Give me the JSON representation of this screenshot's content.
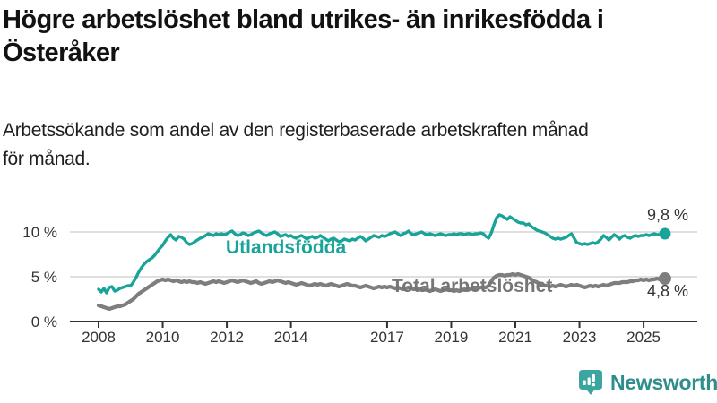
{
  "header": {
    "title_line1": "Högre arbetslöshet bland utrikes- än inrikesfödda i",
    "title_line2": "Österåker",
    "subtitle_line1": "Arbetssökande som andel av den registerbaserade arbetskraften månad",
    "subtitle_line2": "för månad."
  },
  "chart_data": {
    "type": "line",
    "title": "Högre arbetslöshet bland utrikes- än inrikesfödda i Österåker",
    "x_unit": "month",
    "x_start": "2008-01",
    "x_end": "2025-09",
    "x_tick_labels": [
      "2008",
      "2010",
      "2012",
      "2014",
      "2017",
      "2019",
      "2021",
      "2023",
      "2025"
    ],
    "y_ticks": [
      {
        "value": 0,
        "label": "0 %"
      },
      {
        "value": 5,
        "label": "5 %"
      },
      {
        "value": 10,
        "label": "10 %"
      }
    ],
    "ylim": [
      0,
      13
    ],
    "grid": "horizontal",
    "legend_position": "inline-labels",
    "colors": {
      "axis": "#333333",
      "grid": "#cccccc",
      "tick_label": "#333333",
      "value_label": "#333333"
    },
    "series": [
      {
        "name": "Utlandsfödda",
        "color": "#18a499",
        "end_label": "9,8 %",
        "end_value": 9.8,
        "values": [
          3.6,
          3.3,
          3.7,
          3.2,
          3.8,
          3.9,
          3.4,
          3.5,
          3.7,
          3.8,
          3.9,
          4.0,
          4.0,
          4.4,
          4.9,
          5.5,
          6.0,
          6.4,
          6.7,
          6.9,
          7.1,
          7.4,
          7.8,
          8.2,
          8.5,
          9.0,
          9.4,
          9.7,
          9.3,
          9.1,
          9.5,
          9.4,
          9.2,
          8.8,
          8.6,
          8.7,
          8.9,
          9.1,
          9.3,
          9.4,
          9.6,
          9.8,
          9.7,
          9.6,
          9.8,
          9.7,
          9.8,
          9.7,
          9.8,
          10.0,
          10.1,
          9.8,
          9.6,
          9.7,
          9.9,
          9.8,
          9.6,
          9.7,
          9.9,
          10.0,
          10.1,
          9.9,
          9.7,
          9.6,
          9.8,
          9.9,
          10.0,
          9.8,
          9.5,
          9.6,
          9.7,
          9.5,
          9.6,
          9.4,
          9.3,
          9.5,
          9.6,
          9.4,
          9.2,
          9.4,
          9.5,
          9.3,
          9.4,
          9.6,
          9.4,
          9.2,
          9.0,
          9.2,
          9.3,
          9.1,
          8.9,
          9.0,
          9.2,
          9.1,
          9.0,
          9.2,
          9.1,
          9.3,
          9.5,
          9.3,
          9.0,
          9.2,
          9.4,
          9.6,
          9.5,
          9.4,
          9.6,
          9.5,
          9.6,
          9.8,
          9.9,
          10.0,
          9.8,
          9.6,
          9.8,
          9.9,
          10.1,
          9.8,
          9.7,
          9.8,
          9.9,
          10.0,
          9.8,
          9.7,
          9.8,
          9.7,
          9.6,
          9.7,
          9.8,
          9.7,
          9.6,
          9.7,
          9.7,
          9.8,
          9.7,
          9.8,
          9.8,
          9.7,
          9.8,
          9.8,
          9.7,
          9.8,
          9.8,
          9.9,
          9.8,
          9.5,
          9.3,
          9.9,
          10.8,
          11.6,
          11.9,
          11.8,
          11.6,
          11.4,
          11.7,
          11.5,
          11.3,
          11.1,
          11.0,
          11.0,
          10.8,
          10.9,
          10.6,
          10.4,
          10.2,
          10.1,
          10.0,
          9.9,
          9.7,
          9.5,
          9.3,
          9.2,
          9.3,
          9.2,
          9.3,
          9.4,
          9.6,
          9.8,
          9.3,
          8.8,
          8.7,
          8.6,
          8.7,
          8.6,
          8.7,
          8.8,
          8.7,
          8.9,
          9.2,
          9.6,
          9.4,
          9.1,
          9.4,
          9.7,
          9.5,
          9.2,
          9.5,
          9.6,
          9.4,
          9.3,
          9.5,
          9.6,
          9.5,
          9.6,
          9.6,
          9.7,
          9.6,
          9.7,
          9.8,
          9.7,
          9.7,
          9.8,
          9.8
        ]
      },
      {
        "name": "Total arbetslöshet",
        "color": "#7e7e7e",
        "label_color": "#76767a",
        "end_label": "4,8 %",
        "end_value": 4.8,
        "values": [
          1.8,
          1.7,
          1.6,
          1.5,
          1.4,
          1.5,
          1.6,
          1.7,
          1.7,
          1.8,
          1.9,
          2.1,
          2.3,
          2.5,
          2.8,
          3.1,
          3.3,
          3.5,
          3.7,
          3.9,
          4.1,
          4.3,
          4.5,
          4.6,
          4.7,
          4.6,
          4.7,
          4.6,
          4.5,
          4.6,
          4.5,
          4.4,
          4.5,
          4.4,
          4.5,
          4.4,
          4.4,
          4.3,
          4.4,
          4.3,
          4.2,
          4.3,
          4.4,
          4.5,
          4.4,
          4.5,
          4.4,
          4.3,
          4.4,
          4.5,
          4.6,
          4.5,
          4.4,
          4.5,
          4.6,
          4.5,
          4.4,
          4.3,
          4.4,
          4.5,
          4.3,
          4.2,
          4.3,
          4.4,
          4.5,
          4.4,
          4.5,
          4.6,
          4.5,
          4.4,
          4.3,
          4.4,
          4.3,
          4.2,
          4.1,
          4.2,
          4.3,
          4.2,
          4.1,
          4.0,
          4.1,
          4.2,
          4.1,
          4.2,
          4.1,
          4.0,
          4.1,
          4.2,
          4.1,
          4.0,
          3.9,
          4.0,
          4.1,
          4.2,
          4.1,
          4.0,
          4.0,
          3.9,
          3.8,
          3.9,
          4.0,
          3.9,
          3.8,
          3.7,
          3.8,
          3.9,
          3.8,
          3.9,
          3.8,
          3.9,
          3.8,
          3.7,
          3.8,
          3.7,
          3.6,
          3.7,
          3.8,
          3.7,
          3.6,
          3.7,
          3.6,
          3.5,
          3.6,
          3.5,
          3.4,
          3.5,
          3.6,
          3.5,
          3.4,
          3.5,
          3.6,
          3.5,
          3.5,
          3.4,
          3.5,
          3.4,
          3.5,
          3.6,
          3.5,
          3.6,
          3.7,
          3.6,
          3.7,
          3.8,
          3.8,
          3.8,
          4.0,
          4.5,
          4.9,
          5.1,
          5.2,
          5.2,
          5.1,
          5.2,
          5.2,
          5.3,
          5.2,
          5.3,
          5.2,
          5.1,
          5.0,
          4.9,
          4.7,
          4.5,
          4.4,
          4.2,
          4.1,
          4.0,
          4.0,
          3.9,
          4.0,
          3.9,
          4.0,
          4.1,
          4.0,
          3.9,
          4.0,
          4.1,
          4.0,
          4.1,
          4.0,
          3.9,
          3.8,
          3.9,
          4.0,
          3.9,
          4.0,
          3.9,
          4.0,
          4.1,
          4.0,
          4.1,
          4.2,
          4.3,
          4.3,
          4.3,
          4.4,
          4.4,
          4.4,
          4.5,
          4.5,
          4.6,
          4.6,
          4.7,
          4.6,
          4.7,
          4.6,
          4.7,
          4.7,
          4.8,
          4.7,
          4.8,
          4.8
        ]
      }
    ]
  },
  "branding": {
    "logo_text": "Newsworthy",
    "logo_icon": "bar-chart-speech-bubble-icon",
    "brand_color": "#3ba6a0",
    "text_color": "#2f8d8d"
  }
}
